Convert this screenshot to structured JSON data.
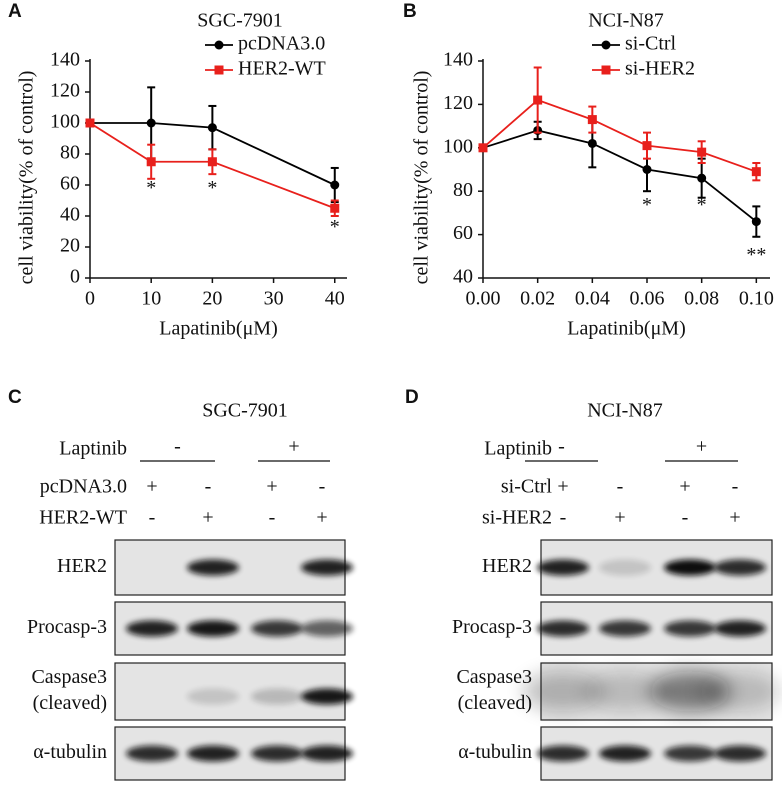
{
  "chart_data": [
    {
      "type": "line",
      "panel": "A",
      "title": "SGC-7901",
      "x_label": "Lapatinib(μM)",
      "y_label": "cell viability(% of control)",
      "x": [
        0,
        10,
        20,
        40
      ],
      "xlim": [
        0,
        42
      ],
      "xticks": [
        0,
        10,
        20,
        30,
        40
      ],
      "ylim": [
        0,
        140
      ],
      "yticks": [
        0,
        20,
        40,
        60,
        80,
        100,
        120,
        140
      ],
      "grid": false,
      "legend": "upper right",
      "series": [
        {
          "name": "pcDNA3.0",
          "color": "#000000",
          "marker": "circle",
          "values": [
            100,
            100,
            97,
            60
          ],
          "errors": [
            0,
            23,
            14,
            11
          ]
        },
        {
          "name": "HER2-WT",
          "color": "#e8201c",
          "marker": "square",
          "values": [
            100,
            75,
            75,
            45
          ],
          "errors": [
            0,
            11,
            8,
            5
          ]
        }
      ],
      "annotations": [
        {
          "x": 10,
          "y": 57,
          "text": "*"
        },
        {
          "x": 20,
          "y": 57,
          "text": "*"
        },
        {
          "x": 40,
          "y": 32,
          "text": "*"
        }
      ]
    },
    {
      "type": "line",
      "panel": "B",
      "title": "NCI-N87",
      "x_label": "Lapatinib(μM)",
      "y_label": "cell viability(% of control)",
      "x": [
        0,
        0.02,
        0.04,
        0.06,
        0.08,
        0.1
      ],
      "xlim": [
        0,
        0.105
      ],
      "xticks": [
        {
          "value": 0,
          "label": "0.00"
        },
        {
          "value": 0.02,
          "label": "0.02"
        },
        {
          "value": 0.04,
          "label": "0.04"
        },
        {
          "value": 0.06,
          "label": "0.06"
        },
        {
          "value": 0.08,
          "label": "0.08"
        },
        {
          "value": 0.1,
          "label": "0.10"
        }
      ],
      "ylim": [
        40,
        140
      ],
      "yticks": [
        40,
        60,
        80,
        100,
        120,
        140
      ],
      "grid": false,
      "legend": "upper right",
      "series": [
        {
          "name": "si-Ctrl",
          "color": "#000000",
          "marker": "circle",
          "values": [
            100,
            108,
            102,
            90,
            86,
            66
          ],
          "errors": [
            0,
            4,
            11,
            10,
            9,
            7
          ]
        },
        {
          "name": "si-HER2",
          "color": "#e8201c",
          "marker": "square",
          "values": [
            100,
            122,
            113,
            101,
            98,
            89
          ],
          "errors": [
            0,
            15,
            6,
            6,
            5,
            4
          ]
        }
      ],
      "annotations": [
        {
          "x": 0.06,
          "y": 73,
          "text": "*"
        },
        {
          "x": 0.08,
          "y": 73,
          "text": "*"
        },
        {
          "x": 0.1,
          "y": 50,
          "text": "**"
        }
      ]
    }
  ],
  "blots": [
    {
      "panel": "C",
      "title": "SGC-7901",
      "treatment": {
        "label": "Laptinib",
        "groups": [
          "-",
          "+"
        ]
      },
      "rows": [
        {
          "label": "pcDNA3.0",
          "signs": [
            "+",
            "-",
            "+",
            "-"
          ]
        },
        {
          "label": "HER2-WT",
          "signs": [
            "-",
            "+",
            "-",
            "+"
          ]
        }
      ],
      "bands": [
        [
          "HER2"
        ],
        [
          "Procasp-3"
        ],
        [
          "Caspase3",
          "(cleaved)"
        ],
        [
          "α-tubulin"
        ]
      ]
    },
    {
      "panel": "D",
      "title": "NCI-N87",
      "treatment": {
        "label": "Laptinib",
        "groups": [
          "-",
          "+"
        ]
      },
      "rows": [
        {
          "label": "si-Ctrl",
          "signs": [
            "+",
            "-",
            "+",
            "-"
          ]
        },
        {
          "label": "si-HER2",
          "signs": [
            "-",
            "+",
            "-",
            "+"
          ]
        }
      ],
      "bands": [
        [
          "HER2"
        ],
        [
          "Procasp-3"
        ],
        [
          "Caspase3",
          "(cleaved)"
        ],
        [
          "α-tubulin"
        ]
      ]
    }
  ]
}
